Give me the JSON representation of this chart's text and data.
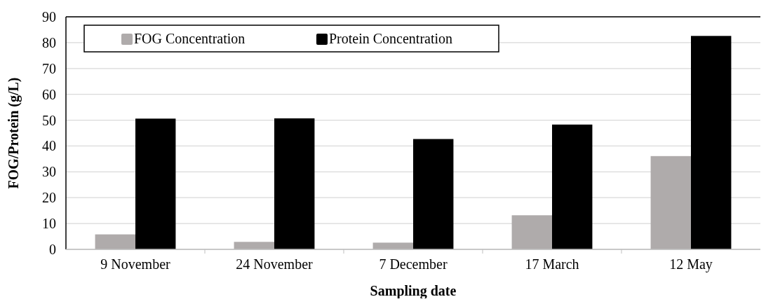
{
  "chart_data": {
    "type": "bar",
    "xlabel": "Sampling date",
    "ylabel": "FOG/Protein (g/L)",
    "categories": [
      "9 November",
      "24 November",
      "7 December",
      "17 March",
      "12 May"
    ],
    "series": [
      {
        "name": "FOG Concentration",
        "color": "#afabab",
        "values": [
          5.8,
          2.9,
          2.6,
          13.2,
          36.1
        ]
      },
      {
        "name": "Protein Concentration",
        "color": "#000000",
        "values": [
          50.6,
          50.7,
          42.7,
          48.3,
          82.6
        ]
      }
    ],
    "ylim": [
      0,
      90
    ],
    "yticks": [
      0,
      10,
      20,
      30,
      40,
      50,
      60,
      70,
      80,
      90
    ],
    "grid": "y",
    "legend": "top left"
  }
}
